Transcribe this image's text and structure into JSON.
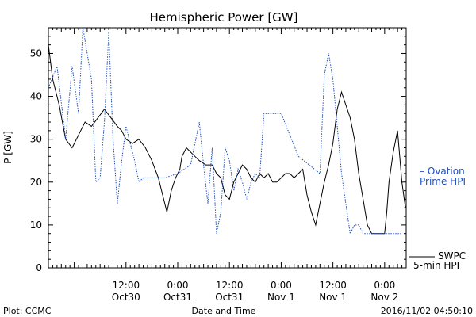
{
  "chart_data": {
    "type": "line",
    "title": "Hemispheric Power [GW]",
    "xlabel": "Date and Time",
    "ylabel": "P [GW]",
    "ylim": [
      0,
      56
    ],
    "xlim": [
      "2016-10-29 18:00",
      "2016-11-02 05:00"
    ],
    "y_ticks": [
      0,
      10,
      20,
      30,
      40,
      50
    ],
    "x_ticks": [
      {
        "t": "2016-10-30 12:00",
        "line1": "12:00",
        "line2": "Oct30"
      },
      {
        "t": "2016-10-31 00:00",
        "line1": "0:00",
        "line2": "Oct31"
      },
      {
        "t": "2016-10-31 12:00",
        "line1": "12:00",
        "line2": "Oct31"
      },
      {
        "t": "2016-11-01 00:00",
        "line1": "0:00",
        "line2": "Nov 1"
      },
      {
        "t": "2016-11-01 12:00",
        "line1": "12:00",
        "line2": "Nov 1"
      },
      {
        "t": "2016-11-02 00:00",
        "line1": "0:00",
        "line2": "Nov 2"
      }
    ],
    "grid": false,
    "series": [
      {
        "name": "SWPC 5-min HPI",
        "color": "#000000",
        "style": "solid",
        "x": [
          "2016-10-29 18:00",
          "2016-10-29 19:00",
          "2016-10-29 20:30",
          "2016-10-29 22:00",
          "2016-10-29 23:30",
          "2016-10-30 01:00",
          "2016-10-30 02:30",
          "2016-10-30 04:00",
          "2016-10-30 05:30",
          "2016-10-30 07:00",
          "2016-10-30 08:30",
          "2016-10-30 10:00",
          "2016-10-30 11:00",
          "2016-10-30 12:00",
          "2016-10-30 13:30",
          "2016-10-30 15:00",
          "2016-10-30 16:30",
          "2016-10-30 18:00",
          "2016-10-30 19:30",
          "2016-10-30 20:30",
          "2016-10-30 21:30",
          "2016-10-30 22:30",
          "2016-10-30 23:30",
          "2016-10-31 00:30",
          "2016-10-31 01:00",
          "2016-10-31 02:00",
          "2016-10-31 03:00",
          "2016-10-31 04:00",
          "2016-10-31 05:00",
          "2016-10-31 06:30",
          "2016-10-31 08:00",
          "2016-10-31 09:00",
          "2016-10-31 10:00",
          "2016-10-31 11:00",
          "2016-10-31 12:00",
          "2016-10-31 13:00",
          "2016-10-31 14:00",
          "2016-10-31 15:00",
          "2016-10-31 16:00",
          "2016-10-31 17:00",
          "2016-10-31 18:00",
          "2016-10-31 19:00",
          "2016-10-31 20:00",
          "2016-10-31 21:00",
          "2016-10-31 22:00",
          "2016-10-31 23:00",
          "2016-11-01 00:00",
          "2016-11-01 01:00",
          "2016-11-01 02:00",
          "2016-11-01 03:00",
          "2016-11-01 04:00",
          "2016-11-01 05:00",
          "2016-11-01 06:00",
          "2016-11-01 07:00",
          "2016-11-01 08:00",
          "2016-11-01 09:00",
          "2016-11-01 10:00",
          "2016-11-01 11:00",
          "2016-11-01 12:00",
          "2016-11-01 13:00",
          "2016-11-01 14:00",
          "2016-11-01 15:00",
          "2016-11-01 16:00",
          "2016-11-01 17:00",
          "2016-11-01 18:00",
          "2016-11-01 19:00",
          "2016-11-01 20:00",
          "2016-11-01 21:00",
          "2016-11-01 22:00",
          "2016-11-01 23:00",
          "2016-11-02 00:00",
          "2016-11-02 00:30",
          "2016-11-02 01:00",
          "2016-11-02 02:00",
          "2016-11-02 03:00",
          "2016-11-02 04:00",
          "2016-11-02 04:50"
        ],
        "y": [
          52,
          44,
          38,
          30,
          28,
          31,
          34,
          33,
          35,
          37,
          35,
          33,
          32,
          30,
          29,
          30,
          28,
          25,
          21,
          17,
          13,
          18,
          21,
          23,
          26,
          28,
          27,
          26,
          25,
          24,
          24,
          22,
          21,
          17,
          16,
          20,
          22,
          24,
          23,
          21,
          20,
          22,
          21,
          22,
          20,
          20,
          21,
          22,
          22,
          21,
          22,
          23,
          17,
          13,
          10,
          15,
          20,
          24,
          29,
          37,
          41,
          38,
          35,
          30,
          22,
          16,
          10,
          8,
          8,
          8,
          8,
          13,
          20,
          27,
          32,
          20,
          14
        ]
      },
      {
        "name": "Ovation Prime HPI",
        "color": "#1f4fbf",
        "style": "dotted",
        "x": [
          "2016-10-29 18:00",
          "2016-10-29 20:00",
          "2016-10-29 22:00",
          "2016-10-29 23:30",
          "2016-10-30 01:00",
          "2016-10-30 02:00",
          "2016-10-30 04:00",
          "2016-10-30 05:00",
          "2016-10-30 06:00",
          "2016-10-30 07:00",
          "2016-10-30 08:00",
          "2016-10-30 09:00",
          "2016-10-30 10:00",
          "2016-10-30 11:00",
          "2016-10-30 12:00",
          "2016-10-30 13:00",
          "2016-10-30 14:00",
          "2016-10-30 15:00",
          "2016-10-30 16:00",
          "2016-10-30 17:00",
          "2016-10-30 18:00",
          "2016-10-30 19:00",
          "2016-10-30 20:00",
          "2016-10-30 21:00",
          "2016-10-31 00:00",
          "2016-10-31 03:00",
          "2016-10-31 05:00",
          "2016-10-31 06:00",
          "2016-10-31 07:00",
          "2016-10-31 08:00",
          "2016-10-31 09:00",
          "2016-10-31 10:00",
          "2016-10-31 11:00",
          "2016-10-31 12:00",
          "2016-10-31 13:00",
          "2016-10-31 14:00",
          "2016-10-31 15:00",
          "2016-10-31 16:00",
          "2016-10-31 17:00",
          "2016-10-31 18:00",
          "2016-10-31 19:00",
          "2016-10-31 20:00",
          "2016-10-31 21:00",
          "2016-10-31 22:00",
          "2016-10-31 23:00",
          "2016-11-01 00:00",
          "2016-11-01 04:00",
          "2016-11-01 09:00",
          "2016-11-01 10:00",
          "2016-11-01 11:00",
          "2016-11-01 12:00",
          "2016-11-01 13:00",
          "2016-11-01 14:00",
          "2016-11-01 15:00",
          "2016-11-01 16:00",
          "2016-11-01 17:00",
          "2016-11-01 18:00",
          "2016-11-01 19:00",
          "2016-11-01 20:00",
          "2016-11-01 21:00",
          "2016-11-01 22:00",
          "2016-11-01 23:00",
          "2016-11-02 00:00",
          "2016-11-02 01:00",
          "2016-11-02 02:00",
          "2016-11-02 03:00",
          "2016-11-02 04:00"
        ],
        "y": [
          42,
          47,
          30,
          47,
          36,
          56,
          44,
          20,
          21,
          34,
          55,
          30,
          15,
          25,
          33,
          29,
          25,
          20,
          21,
          21,
          21,
          21,
          21,
          21,
          22,
          24,
          34,
          24,
          15,
          28,
          8,
          13,
          28,
          25,
          18,
          23,
          20,
          16,
          20,
          22,
          21,
          36,
          36,
          36,
          36,
          36,
          26,
          22,
          45,
          50,
          44,
          33,
          22,
          15,
          8,
          10,
          10,
          8,
          8,
          8,
          8,
          8,
          8,
          8,
          8,
          8,
          8
        ]
      }
    ]
  },
  "legend": {
    "ovation_line1": "– Ovation",
    "ovation_line2": "Prime HPI",
    "swpc_line1": "SWPC",
    "swpc_line2": "5-min HPI"
  },
  "footer": {
    "left": "Plot: CCMC",
    "center": "Date and Time",
    "right": "2016/11/02 04:50:10"
  }
}
